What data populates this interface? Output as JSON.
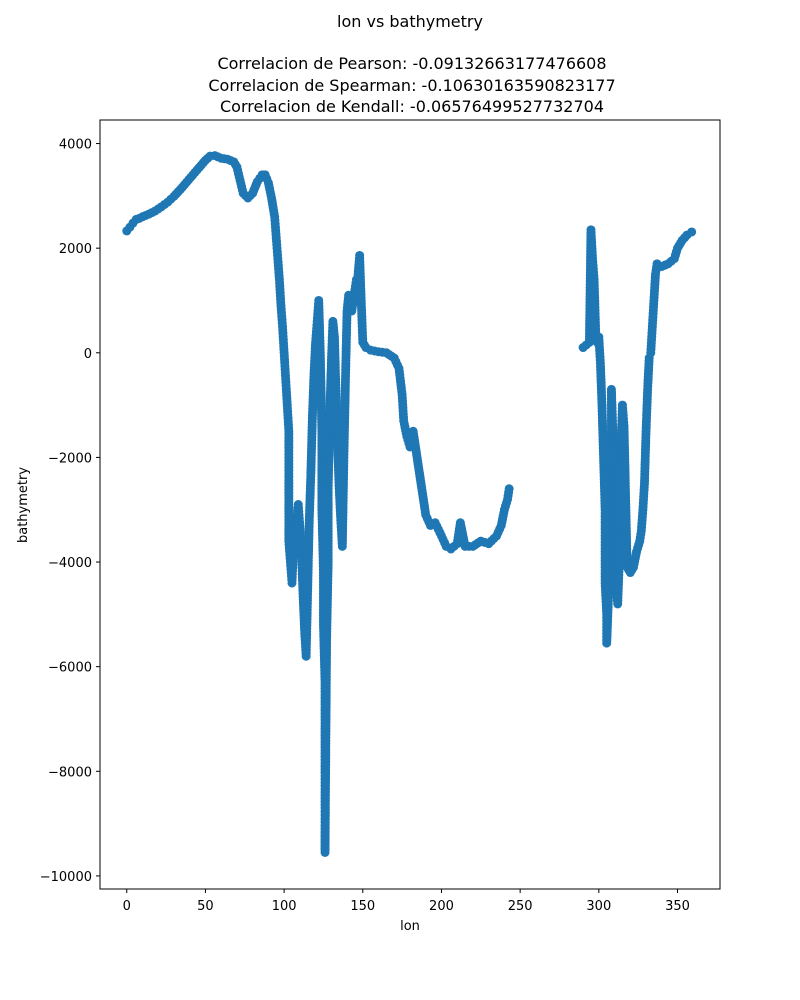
{
  "chart_data": {
    "type": "scatter",
    "title": "lon vs bathymetry",
    "subtitle_lines": [
      "Correlacion de Pearson: -0.09132663177476608",
      "Correlacion de Spearman: -0.10630163590823177",
      "Correlacion de Kendall: -0.06576499527732704"
    ],
    "xlabel": "lon",
    "ylabel": "bathymetry",
    "xlim": [
      -17,
      377
    ],
    "ylim": [
      -10250,
      4450
    ],
    "xticks": [
      0,
      50,
      100,
      150,
      200,
      250,
      300,
      350
    ],
    "xtick_labels": [
      "0",
      "50",
      "100",
      "150",
      "200",
      "250",
      "300",
      "350"
    ],
    "yticks": [
      4000,
      2000,
      0,
      -2000,
      -4000,
      -6000,
      -8000,
      -10000
    ],
    "ytick_labels": [
      "4000",
      "2000",
      "0",
      "−2000",
      "−4000",
      "−6000",
      "−8000",
      "−10000"
    ],
    "grid": false,
    "marker_color": "#1f77b4",
    "series": [
      {
        "points": [
          [
            0,
            2330
          ],
          [
            2,
            2400
          ],
          [
            4,
            2480
          ],
          [
            6,
            2550
          ],
          [
            8,
            2570
          ],
          [
            10,
            2600
          ],
          [
            14,
            2650
          ],
          [
            18,
            2710
          ],
          [
            22,
            2790
          ],
          [
            26,
            2880
          ],
          [
            30,
            2990
          ],
          [
            34,
            3120
          ],
          [
            38,
            3260
          ],
          [
            42,
            3400
          ],
          [
            46,
            3540
          ],
          [
            50,
            3680
          ],
          [
            53,
            3760
          ],
          [
            56,
            3770
          ],
          [
            60,
            3720
          ],
          [
            64,
            3700
          ],
          [
            68,
            3650
          ],
          [
            70,
            3550
          ],
          [
            72,
            3300
          ],
          [
            74,
            3050
          ],
          [
            77,
            2960
          ],
          [
            80,
            3050
          ],
          [
            83,
            3270
          ],
          [
            86,
            3400
          ],
          [
            88,
            3400
          ],
          [
            90,
            3250
          ],
          [
            92,
            2960
          ],
          [
            94,
            2600
          ],
          [
            95,
            2200
          ],
          [
            96,
            1800
          ],
          [
            97,
            1400
          ],
          [
            98,
            900
          ],
          [
            99,
            500
          ],
          [
            100,
            0
          ],
          [
            101,
            -500
          ],
          [
            102,
            -1000
          ],
          [
            103,
            -1500
          ],
          [
            103,
            -2000
          ],
          [
            103,
            -2500
          ],
          [
            103,
            -3600
          ],
          [
            104,
            -4000
          ],
          [
            105,
            -4400
          ],
          [
            106,
            -3700
          ],
          [
            108,
            -3200
          ],
          [
            109,
            -2900
          ],
          [
            110,
            -3300
          ],
          [
            111,
            -3800
          ],
          [
            112,
            -4600
          ],
          [
            113,
            -5300
          ],
          [
            114,
            -5800
          ],
          [
            115,
            -4500
          ],
          [
            116,
            -3200
          ],
          [
            117,
            -2300
          ],
          [
            118,
            -1200
          ],
          [
            119,
            -400
          ],
          [
            120,
            200
          ],
          [
            121,
            600
          ],
          [
            122,
            1000
          ],
          [
            123,
            0
          ],
          [
            124,
            -1500
          ],
          [
            124,
            -3000
          ],
          [
            125,
            -4200
          ],
          [
            125,
            -5200
          ],
          [
            126,
            -6300
          ],
          [
            126,
            -6900
          ],
          [
            126,
            -7600
          ],
          [
            126,
            -7900
          ],
          [
            126,
            -8400
          ],
          [
            126,
            -8700
          ],
          [
            126,
            -9100
          ],
          [
            126,
            -9300
          ],
          [
            126,
            -9550
          ],
          [
            127,
            -5500
          ],
          [
            128,
            -4000
          ],
          [
            128,
            -2600
          ],
          [
            129,
            -1200
          ],
          [
            130,
            -200
          ],
          [
            131,
            600
          ],
          [
            132,
            300
          ],
          [
            133,
            -800
          ],
          [
            134,
            -1800
          ],
          [
            135,
            -2600
          ],
          [
            136,
            -3200
          ],
          [
            137,
            -3700
          ],
          [
            138,
            -2000
          ],
          [
            139,
            -500
          ],
          [
            140,
            800
          ],
          [
            141,
            1100
          ],
          [
            143,
            800
          ],
          [
            145,
            1200
          ],
          [
            146,
            1400
          ],
          [
            147,
            1500
          ],
          [
            148,
            1860
          ],
          [
            149,
            1000
          ],
          [
            150,
            200
          ],
          [
            152,
            100
          ],
          [
            155,
            50
          ],
          [
            160,
            20
          ],
          [
            165,
            0
          ],
          [
            170,
            -100
          ],
          [
            173,
            -300
          ],
          [
            175,
            -800
          ],
          [
            176,
            -1300
          ],
          [
            178,
            -1600
          ],
          [
            180,
            -1800
          ],
          [
            182,
            -1500
          ],
          [
            184,
            -1900
          ],
          [
            186,
            -2300
          ],
          [
            188,
            -2700
          ],
          [
            190,
            -3100
          ],
          [
            193,
            -3300
          ],
          [
            196,
            -3250
          ],
          [
            200,
            -3500
          ],
          [
            203,
            -3700
          ],
          [
            206,
            -3750
          ],
          [
            210,
            -3650
          ],
          [
            212,
            -3250
          ],
          [
            215,
            -3700
          ],
          [
            220,
            -3700
          ],
          [
            225,
            -3600
          ],
          [
            230,
            -3650
          ],
          [
            235,
            -3500
          ],
          [
            238,
            -3300
          ],
          [
            240,
            -3000
          ],
          [
            242,
            -2800
          ],
          [
            243,
            -2600
          ],
          [
            290,
            100
          ],
          [
            292,
            150
          ],
          [
            294,
            200
          ],
          [
            295,
            2350
          ],
          [
            296,
            1800
          ],
          [
            297,
            1400
          ],
          [
            298,
            400
          ],
          [
            299,
            200
          ],
          [
            300,
            300
          ],
          [
            301,
            -200
          ],
          [
            302,
            -1000
          ],
          [
            303,
            -2000
          ],
          [
            304,
            -3000
          ],
          [
            304,
            -3800
          ],
          [
            304,
            -4400
          ],
          [
            305,
            -5000
          ],
          [
            305,
            -5550
          ],
          [
            306,
            -4800
          ],
          [
            307,
            -3500
          ],
          [
            307,
            -2500
          ],
          [
            308,
            -1500
          ],
          [
            308,
            -700
          ],
          [
            309,
            -1600
          ],
          [
            310,
            -2800
          ],
          [
            310,
            -3700
          ],
          [
            311,
            -4500
          ],
          [
            312,
            -4800
          ],
          [
            313,
            -4000
          ],
          [
            313,
            -3000
          ],
          [
            314,
            -1800
          ],
          [
            315,
            -1000
          ],
          [
            316,
            -1400
          ],
          [
            318,
            -4100
          ],
          [
            320,
            -4200
          ],
          [
            322,
            -4100
          ],
          [
            324,
            -3800
          ],
          [
            326,
            -3600
          ],
          [
            327,
            -3400
          ],
          [
            328,
            -3000
          ],
          [
            329,
            -2500
          ],
          [
            330,
            -1500
          ],
          [
            331,
            -700
          ],
          [
            332,
            -100
          ],
          [
            333,
            0
          ],
          [
            334,
            500
          ],
          [
            335,
            1000
          ],
          [
            336,
            1500
          ],
          [
            337,
            1700
          ],
          [
            340,
            1650
          ],
          [
            344,
            1700
          ],
          [
            348,
            1800
          ],
          [
            350,
            2000
          ],
          [
            353,
            2150
          ],
          [
            356,
            2250
          ],
          [
            359,
            2310
          ]
        ]
      }
    ]
  }
}
